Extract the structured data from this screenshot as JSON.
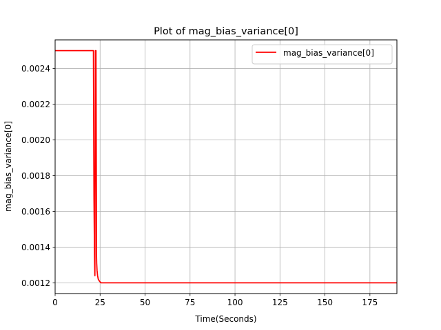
{
  "chart_data": {
    "type": "line",
    "title": "Plot of mag_bias_variance[0]",
    "xlabel": "Time(Seconds)",
    "ylabel": "mag_bias_variance[0]",
    "xlim": [
      0,
      190
    ],
    "ylim": [
      0.00114,
      0.00256
    ],
    "xticks": [
      0,
      25,
      50,
      75,
      100,
      125,
      150,
      175
    ],
    "xtick_labels": [
      "0",
      "25",
      "50",
      "75",
      "100",
      "125",
      "150",
      "175"
    ],
    "yticks": [
      0.0012,
      0.0014,
      0.0016,
      0.0018,
      0.002,
      0.0022,
      0.0024
    ],
    "ytick_labels": [
      "0.0012",
      "0.0014",
      "0.0016",
      "0.0018",
      "0.0020",
      "0.0022",
      "0.0024"
    ],
    "grid": true,
    "legend": {
      "placement": "top-right"
    },
    "series": [
      {
        "name": "mag_bias_variance[0]",
        "color": "#ff0000",
        "x": [
          0,
          21.3,
          21.6,
          21.9,
          22.1,
          22.4,
          22.7,
          23.0,
          23.0,
          23.1,
          23.3,
          23.6,
          24.0,
          24.6,
          25.5,
          27.0,
          190
        ],
        "y": [
          0.0025,
          0.0025,
          0.00168,
          0.00135,
          0.00124,
          0.0025,
          0.0025,
          0.0015,
          0.00136,
          0.00131,
          0.00127,
          0.00124,
          0.00122,
          0.00121,
          0.0012,
          0.0012,
          0.0012
        ]
      }
    ]
  }
}
